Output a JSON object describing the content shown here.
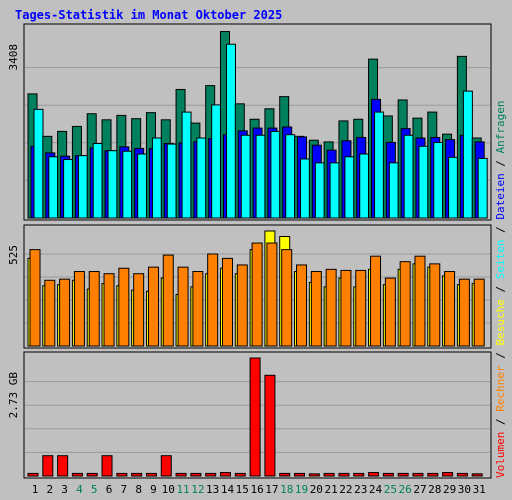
{
  "chart_data": {
    "type": "bar",
    "title": "Tages-Statistik im Monat Oktober 2025",
    "x": [
      "1",
      "2",
      "3",
      "4",
      "5",
      "6",
      "7",
      "8",
      "9",
      "10",
      "11",
      "12",
      "13",
      "14",
      "15",
      "16",
      "17",
      "18",
      "19",
      "20",
      "21",
      "22",
      "23",
      "24",
      "25",
      "26",
      "27",
      "28",
      "29",
      "30",
      "31"
    ],
    "weekend_days": [
      "4",
      "5",
      "11",
      "12",
      "18",
      "19",
      "25",
      "26"
    ],
    "panels": [
      {
        "name": "top",
        "ymax_label": "3408",
        "ylim": [
          0,
          3408
        ],
        "series": [
          {
            "name": "Anfragen",
            "color": "#00805c",
            "values": [
              2250,
              1480,
              1570,
              1660,
              1890,
              1780,
              1860,
              1800,
              1910,
              1780,
              2330,
              1720,
              2400,
              3380,
              2070,
              1790,
              1980,
              2200,
              1480,
              1410,
              1380,
              1760,
              1790,
              2880,
              1850,
              2140,
              1810,
              1920,
              1520,
              2930,
              1450
            ]
          },
          {
            "name": "Dateien",
            "color": "#0000ff",
            "values": [
              1300,
              1180,
              1120,
              1130,
              1270,
              1220,
              1290,
              1260,
              1260,
              1350,
              1360,
              1380,
              1440,
              1510,
              1580,
              1630,
              1630,
              1650,
              1470,
              1320,
              1230,
              1400,
              1460,
              2150,
              1370,
              1620,
              1450,
              1460,
              1420,
              1500,
              1380
            ]
          },
          {
            "name": "Seiten",
            "color": "#00ffff",
            "values": [
              1970,
              1110,
              1060,
              1130,
              1350,
              1220,
              1210,
              1160,
              1450,
              1340,
              1920,
              1450,
              2050,
              3150,
              1500,
              1500,
              1570,
              1510,
              1070,
              1000,
              1000,
              1110,
              1160,
              1920,
              1000,
              1500,
              1300,
              1370,
              1100,
              2300,
              1080
            ]
          }
        ]
      },
      {
        "name": "middle",
        "ymax_label": "525",
        "ylim": [
          0,
          525
        ],
        "series": [
          {
            "name": "Besuche",
            "color": "#ffff00",
            "values": [
              400,
              275,
              280,
              300,
              260,
              285,
              275,
              255,
              250,
              310,
              235,
              270,
              330,
              355,
              330,
              440,
              525,
              500,
              340,
              290,
              270,
              310,
              270,
              350,
              280,
              350,
              375,
              360,
              320,
              280,
              285
            ]
          },
          {
            "name": "Rechner",
            "color": "#ff8000",
            "values": [
              440,
              300,
              305,
              340,
              340,
              330,
              355,
              330,
              360,
              415,
              360,
              340,
              420,
              400,
              370,
              470,
              470,
              440,
              370,
              340,
              350,
              345,
              345,
              410,
              310,
              385,
              410,
              375,
              340,
              305,
              305
            ]
          }
        ]
      },
      {
        "name": "bottom",
        "ymax_label": "2.73 GB",
        "ylim": [
          0,
          2.73
        ],
        "series": [
          {
            "name": "Volumen",
            "color": "#ff0000",
            "values": [
              0.06,
              0.47,
              0.47,
              0.06,
              0.06,
              0.47,
              0.06,
              0.06,
              0.06,
              0.47,
              0.06,
              0.06,
              0.06,
              0.08,
              0.06,
              2.73,
              2.33,
              0.06,
              0.06,
              0.05,
              0.06,
              0.06,
              0.06,
              0.08,
              0.06,
              0.06,
              0.06,
              0.06,
              0.08,
              0.06,
              0.05
            ]
          }
        ]
      }
    ],
    "legend_right": [
      {
        "label": "Volumen",
        "color": "#ff0000"
      },
      {
        "label": "Rechner",
        "color": "#ff8000"
      },
      {
        "label": "Besuche",
        "color": "#ffff00"
      },
      {
        "label": "Seiten",
        "color": "#00ffff"
      },
      {
        "label": "Dateien",
        "color": "#0000ff"
      },
      {
        "label": "Anfragen",
        "color": "#00805c"
      }
    ],
    "legend_separator": " / ",
    "colors": {
      "background": "#c0c0c0",
      "plot_border": "#000000",
      "gridline": "#9a9a9a",
      "weekday_label": "#000000",
      "weekend_label": "#00805c",
      "title": "#0000ff",
      "separator": "#000000"
    },
    "grid": true,
    "legend_position": "right-vertical"
  }
}
